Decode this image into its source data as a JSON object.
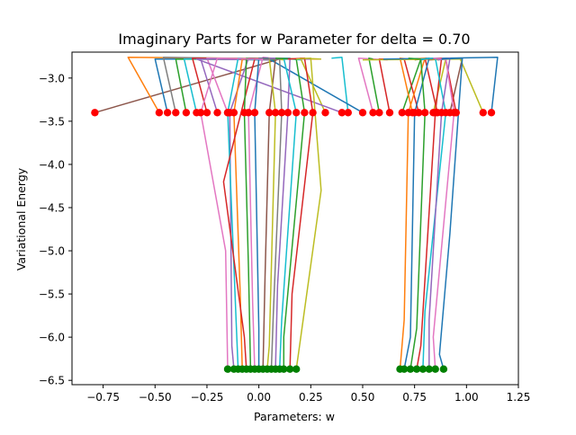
{
  "chart_data": {
    "type": "line",
    "title": "Imaginary Parts for w Parameter for delta = 0.70",
    "xlabel": "Parameters: w",
    "ylabel": "Variational Energy",
    "xlim": [
      -0.9,
      1.25
    ],
    "ylim": [
      -6.55,
      -2.7
    ],
    "x_ticks": [
      -0.75,
      -0.5,
      -0.25,
      0.0,
      0.25,
      0.5,
      0.75,
      1.0,
      1.25
    ],
    "x_tick_labels": [
      "−0.75",
      "−0.50",
      "−0.25",
      "0.00",
      "0.25",
      "0.50",
      "0.75",
      "1.00",
      "1.25"
    ],
    "y_ticks": [
      -3.0,
      -3.5,
      -4.0,
      -4.5,
      -5.0,
      -5.5,
      -6.0,
      -6.5
    ],
    "y_tick_labels": [
      "−3.0",
      "−3.5",
      "−4.0",
      "−4.5",
      "−5.0",
      "−5.5",
      "−6.0",
      "−6.5"
    ],
    "grid": false,
    "legend": "none",
    "palette": [
      "#1f77b4",
      "#ff7f0e",
      "#2ca02c",
      "#d62728",
      "#9467bd",
      "#8c564b",
      "#e377c2",
      "#7f7f7f",
      "#bcbd22",
      "#17becf"
    ],
    "upper_marker_color": "#ff0000",
    "lower_marker_color": "#008000",
    "upper_level": -3.4,
    "lower_level": -6.37,
    "trajectories": [
      {
        "x": [
          -0.79,
          0.1,
          0.05
        ],
        "y": [
          -3.4,
          -2.78,
          -2.8
        ],
        "color_index": 5
      },
      {
        "x": [
          -0.48,
          -0.63,
          0.3
        ],
        "y": [
          -3.4,
          -2.76,
          -2.78
        ],
        "color_index": 1
      },
      {
        "x": [
          -0.44,
          -0.5,
          0.0
        ],
        "y": [
          -3.4,
          -2.78,
          -2.78
        ],
        "color_index": 0
      },
      {
        "x": [
          -0.4,
          -0.46,
          0.1
        ],
        "y": [
          -3.4,
          -2.76,
          -2.78
        ],
        "color_index": 7
      },
      {
        "x": [
          -0.35,
          -0.4,
          0.08
        ],
        "y": [
          -3.4,
          -2.78,
          -2.79
        ],
        "color_index": 2
      },
      {
        "x": [
          -0.3,
          -0.36,
          -0.2
        ],
        "y": [
          -3.4,
          -2.78,
          -2.77
        ],
        "color_index": 9
      },
      {
        "x": [
          -0.25,
          -0.32,
          0.0
        ],
        "y": [
          -3.4,
          -2.77,
          -2.78
        ],
        "color_index": 3
      },
      {
        "x": [
          -0.2,
          -0.28,
          0.05
        ],
        "y": [
          -3.4,
          -2.78,
          -2.79
        ],
        "color_index": 4
      },
      {
        "x": [
          -0.15,
          -0.25,
          -0.05
        ],
        "y": [
          -3.4,
          -2.77,
          -2.78
        ],
        "color_index": 6
      },
      {
        "x": [
          0.32,
          0.2,
          0.3
        ],
        "y": [
          -3.4,
          -2.77,
          -2.78
        ],
        "color_index": 8
      },
      {
        "x": [
          0.4,
          -0.3,
          0.25
        ],
        "y": [
          -3.4,
          -2.78,
          -2.78
        ],
        "color_index": 4
      },
      {
        "x": [
          0.43,
          0.4,
          0.35
        ],
        "y": [
          -3.4,
          -2.76,
          -2.77
        ],
        "color_index": 9
      },
      {
        "x": [
          0.5,
          0.05,
          0.2
        ],
        "y": [
          -3.4,
          -2.78,
          -2.78
        ],
        "color_index": 0
      },
      {
        "x": [
          0.55,
          0.48,
          0.62
        ],
        "y": [
          -3.4,
          -2.77,
          -2.79
        ],
        "color_index": 6
      },
      {
        "x": [
          0.58,
          0.53,
          0.55
        ],
        "y": [
          -3.4,
          -2.77,
          -2.78
        ],
        "color_index": 2
      },
      {
        "x": [
          0.63,
          0.58,
          0.65
        ],
        "y": [
          -3.4,
          -2.78,
          -2.78
        ],
        "color_index": 3
      },
      {
        "x": [
          0.69,
          0.78,
          0.75
        ],
        "y": [
          -3.4,
          -2.78,
          -2.79
        ],
        "color_index": 2
      },
      {
        "x": [
          0.74,
          0.68,
          0.72
        ],
        "y": [
          -3.4,
          -2.77,
          -2.78
        ],
        "color_index": 1
      },
      {
        "x": [
          0.77,
          0.7,
          0.76
        ],
        "y": [
          -3.4,
          -2.78,
          -2.78
        ],
        "color_index": 3
      },
      {
        "x": [
          0.84,
          0.9,
          0.86
        ],
        "y": [
          -3.4,
          -2.78,
          -2.79
        ],
        "color_index": 8
      },
      {
        "x": [
          0.86,
          0.8,
          0.85
        ],
        "y": [
          -3.4,
          -2.77,
          -2.78
        ],
        "color_index": 3
      },
      {
        "x": [
          0.92,
          0.98,
          0.82
        ],
        "y": [
          -3.4,
          -2.77,
          -2.79
        ],
        "color_index": 5
      },
      {
        "x": [
          0.95,
          0.9,
          0.92
        ],
        "y": [
          -3.4,
          -2.78,
          -2.78
        ],
        "color_index": 3
      },
      {
        "x": [
          1.08,
          0.97,
          0.5
        ],
        "y": [
          -3.4,
          -2.78,
          -2.79
        ],
        "color_index": 8
      },
      {
        "x": [
          1.12,
          1.15,
          0.6
        ],
        "y": [
          -3.4,
          -2.76,
          -2.78
        ],
        "color_index": 0
      },
      {
        "x": [
          -0.12,
          -0.13,
          -0.14,
          -0.05,
          0.05
        ],
        "y": [
          -6.37,
          -6.1,
          -3.4,
          -2.77,
          -2.78
        ],
        "color_index": 4
      },
      {
        "x": [
          -0.1,
          -0.11,
          -0.15,
          -0.1,
          0.0
        ],
        "y": [
          -6.37,
          -5.8,
          -3.4,
          -2.77,
          -2.79
        ],
        "color_index": 9
      },
      {
        "x": [
          -0.08,
          -0.09,
          -0.12,
          -0.08,
          0.02
        ],
        "y": [
          -6.37,
          -5.5,
          -3.4,
          -2.78,
          -2.77
        ],
        "color_index": 1
      },
      {
        "x": [
          -0.06,
          -0.07,
          -0.17,
          -0.02,
          0.08
        ],
        "y": [
          -6.37,
          -6.0,
          -4.2,
          -2.78,
          -2.77
        ],
        "color_index": 3
      },
      {
        "x": [
          -0.04,
          -0.05,
          -0.07,
          -0.06,
          0.04
        ],
        "y": [
          -6.37,
          -5.2,
          -3.4,
          -2.77,
          -2.78
        ],
        "color_index": 2
      },
      {
        "x": [
          -0.02,
          -0.03,
          -0.05,
          0.02,
          0.1
        ],
        "y": [
          -6.37,
          -5.6,
          -3.4,
          -2.76,
          -2.78
        ],
        "color_index": 6
      },
      {
        "x": [
          0.0,
          0.0,
          -0.02,
          0.0,
          0.05
        ],
        "y": [
          -6.37,
          -5.9,
          -3.4,
          -2.77,
          -2.77
        ],
        "color_index": 0
      },
      {
        "x": [
          0.02,
          0.03,
          0.05,
          0.08,
          -0.05
        ],
        "y": [
          -6.37,
          -5.3,
          -3.4,
          -2.78,
          -2.77
        ],
        "color_index": 5
      },
      {
        "x": [
          0.04,
          0.05,
          0.08,
          0.05,
          0.12
        ],
        "y": [
          -6.37,
          -6.1,
          -3.4,
          -2.77,
          -2.79
        ],
        "color_index": 8
      },
      {
        "x": [
          0.06,
          0.07,
          0.11,
          0.1,
          0.0
        ],
        "y": [
          -6.37,
          -5.7,
          -3.4,
          -2.78,
          -2.78
        ],
        "color_index": 7
      },
      {
        "x": [
          0.08,
          0.09,
          0.14,
          0.15,
          0.05
        ],
        "y": [
          -6.37,
          -5.4,
          -3.4,
          -2.77,
          -2.77
        ],
        "color_index": 4
      },
      {
        "x": [
          0.1,
          0.11,
          0.18,
          0.12,
          0.2
        ],
        "y": [
          -6.37,
          -5.8,
          -3.4,
          -2.77,
          -2.79
        ],
        "color_index": 9
      },
      {
        "x": [
          0.12,
          0.12,
          0.22,
          0.18,
          0.08
        ],
        "y": [
          -6.37,
          -6.0,
          -3.4,
          -2.78,
          -2.77
        ],
        "color_index": 2
      },
      {
        "x": [
          0.15,
          0.16,
          0.26,
          0.22,
          0.14
        ],
        "y": [
          -6.37,
          -5.5,
          -3.4,
          -2.77,
          -2.78
        ],
        "color_index": 3
      },
      {
        "x": [
          0.18,
          0.19,
          0.3,
          0.25,
          0.18
        ],
        "y": [
          -6.37,
          -6.2,
          -4.3,
          -2.77,
          -2.78
        ],
        "color_index": 8
      },
      {
        "x": [
          -0.15,
          -0.16,
          -0.28,
          -0.2,
          0.02
        ],
        "y": [
          -6.37,
          -5.0,
          -3.4,
          -2.77,
          -2.78
        ],
        "color_index": 6
      },
      {
        "x": [
          0.68,
          0.7,
          0.72,
          0.8,
          0.75
        ],
        "y": [
          -6.37,
          -5.8,
          -3.4,
          -2.77,
          -2.78
        ],
        "color_index": 1
      },
      {
        "x": [
          0.7,
          0.73,
          0.75,
          0.82,
          0.78
        ],
        "y": [
          -6.37,
          -6.0,
          -3.4,
          -2.77,
          -2.79
        ],
        "color_index": 0
      },
      {
        "x": [
          0.73,
          0.76,
          0.8,
          0.78,
          0.72
        ],
        "y": [
          -6.37,
          -5.9,
          -3.4,
          -2.78,
          -2.77
        ],
        "color_index": 2
      },
      {
        "x": [
          0.76,
          0.78,
          0.85,
          0.88,
          0.8
        ],
        "y": [
          -6.37,
          -6.1,
          -3.4,
          -2.77,
          -2.78
        ],
        "color_index": 3
      },
      {
        "x": [
          0.79,
          0.8,
          0.9,
          0.85,
          0.78
        ],
        "y": [
          -6.37,
          -5.7,
          -3.4,
          -2.77,
          -2.78
        ],
        "color_index": 9
      },
      {
        "x": [
          0.82,
          0.82,
          0.88,
          0.92,
          0.86
        ],
        "y": [
          -6.37,
          -5.8,
          -3.4,
          -2.77,
          -2.79
        ],
        "color_index": 4
      },
      {
        "x": [
          0.85,
          0.84,
          0.94,
          0.9,
          0.84
        ],
        "y": [
          -6.37,
          -6.0,
          -3.4,
          -2.78,
          -2.77
        ],
        "color_index": 6
      },
      {
        "x": [
          0.89,
          0.87,
          0.92,
          0.98,
          0.88
        ],
        "y": [
          -6.37,
          -6.2,
          -4.8,
          -2.77,
          -2.78
        ],
        "color_index": 0
      }
    ]
  }
}
